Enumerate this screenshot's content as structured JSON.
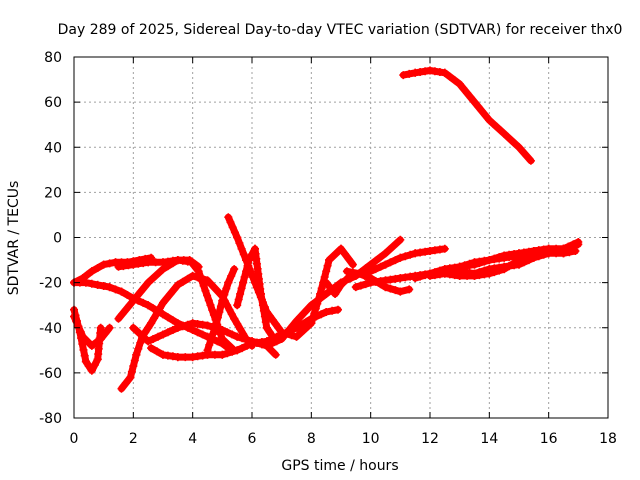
{
  "chart_data": {
    "type": "scatter",
    "title": "Day 289 of 2025, Sidereal Day-to-day VTEC variation (SDTVAR) for receiver thx0",
    "xlabel": "GPS time / hours",
    "ylabel": "SDTVAR / TECUs",
    "xlim": [
      0,
      18
    ],
    "ylim": [
      -80,
      80
    ],
    "xticks": [
      0,
      2,
      4,
      6,
      8,
      10,
      12,
      14,
      16,
      18
    ],
    "yticks": [
      -80,
      -60,
      -40,
      -20,
      0,
      20,
      40,
      60,
      80
    ],
    "grid": true,
    "marker": "+",
    "color": "#ff0000",
    "series": [
      {
        "name": "s1",
        "x": [
          11.1,
          11.5,
          12.0,
          12.5,
          13.0,
          13.5,
          14.0,
          14.5,
          15.0,
          15.4
        ],
        "y": [
          72,
          73,
          74,
          73,
          68,
          60,
          52,
          46,
          40,
          34
        ]
      },
      {
        "name": "s2",
        "x": [
          0.0,
          0.4,
          0.8,
          1.2,
          1.6,
          2.0,
          2.5,
          3.0,
          3.5,
          4.0,
          4.5,
          5.0,
          5.3
        ],
        "y": [
          -20,
          -20,
          -21,
          -22,
          -24,
          -27,
          -30,
          -34,
          -38,
          -41,
          -44,
          -47,
          -50
        ]
      },
      {
        "name": "s3",
        "x": [
          0.0,
          0.3,
          0.6,
          1.0,
          1.4,
          1.8,
          2.2,
          2.6
        ],
        "y": [
          -20,
          -18,
          -15,
          -12,
          -11,
          -11,
          -10,
          -9
        ]
      },
      {
        "name": "s4",
        "x": [
          0.0,
          0.2,
          0.4,
          0.6,
          0.8,
          0.9
        ],
        "y": [
          -32,
          -42,
          -55,
          -59,
          -54,
          -40
        ]
      },
      {
        "name": "s5",
        "x": [
          0.0,
          0.3,
          0.6,
          0.9,
          1.2
        ],
        "y": [
          -35,
          -44,
          -48,
          -45,
          -40
        ]
      },
      {
        "name": "s6",
        "x": [
          1.6,
          1.9,
          2.1,
          2.3,
          2.6,
          3.0,
          3.5,
          4.0,
          4.5,
          5.0,
          5.4,
          5.8,
          6.0
        ],
        "y": [
          -67,
          -62,
          -52,
          -44,
          -38,
          -29,
          -21,
          -17,
          -19,
          -26,
          -36,
          -45,
          -48
        ]
      },
      {
        "name": "s7",
        "x": [
          1.5,
          2.0,
          2.5,
          3.0,
          3.5,
          3.9,
          4.2,
          4.6,
          5.0,
          5.4
        ],
        "y": [
          -36,
          -28,
          -20,
          -14,
          -10,
          -10,
          -15,
          -30,
          -45,
          -50
        ]
      },
      {
        "name": "s8",
        "x": [
          2.0,
          2.5,
          3.0,
          3.5,
          4.0,
          4.5,
          5.0,
          5.5,
          6.0,
          6.5,
          6.8
        ],
        "y": [
          -40,
          -46,
          -43,
          -40,
          -38,
          -39,
          -41,
          -44,
          -46,
          -48,
          -52
        ]
      },
      {
        "name": "s9",
        "x": [
          1.5,
          2.0,
          2.5,
          3.0,
          3.5,
          4.0,
          4.2
        ],
        "y": [
          -13,
          -12,
          -11,
          -11,
          -10,
          -11,
          -13
        ]
      },
      {
        "name": "s10",
        "x": [
          2.6,
          3.0,
          3.5,
          4.0,
          4.5,
          5.0,
          5.5,
          6.0,
          6.5,
          7.0,
          7.5,
          8.0,
          8.5,
          8.9
        ],
        "y": [
          -49,
          -52,
          -53,
          -53,
          -52,
          -52,
          -50,
          -47,
          -46,
          -43,
          -40,
          -36,
          -33,
          -32
        ]
      },
      {
        "name": "s11",
        "x": [
          5.2,
          5.5,
          5.8,
          6.1,
          6.5,
          7.0,
          7.5,
          8.0,
          8.3,
          8.6,
          9.0,
          9.4
        ],
        "y": [
          9,
          0,
          -10,
          -20,
          -33,
          -42,
          -44,
          -38,
          -25,
          -10,
          -5,
          -12
        ]
      },
      {
        "name": "s12",
        "x": [
          4.5,
          4.8,
          5.0,
          5.2,
          5.4
        ],
        "y": [
          -50,
          -38,
          -28,
          -20,
          -14
        ]
      },
      {
        "name": "s13",
        "x": [
          5.5,
          5.7,
          5.9,
          6.1,
          6.3,
          6.5,
          6.8
        ],
        "y": [
          -30,
          -20,
          -10,
          -5,
          -25,
          -40,
          -46
        ]
      },
      {
        "name": "s14",
        "x": [
          6.0,
          6.5,
          7.0,
          7.5,
          8.0,
          8.5,
          9.0,
          9.5,
          10.0,
          10.5,
          11.0
        ],
        "y": [
          -46,
          -48,
          -45,
          -37,
          -30,
          -25,
          -20,
          -17,
          -12,
          -7,
          -1
        ]
      },
      {
        "name": "s15",
        "x": [
          8.5,
          8.8,
          9.0,
          9.3,
          9.6,
          10.0,
          10.5,
          11.0,
          11.3
        ],
        "y": [
          -20,
          -25,
          -21,
          -17,
          -16,
          -18,
          -22,
          -24,
          -23
        ]
      },
      {
        "name": "s16",
        "x": [
          9.2,
          9.6,
          10.0,
          10.5,
          11.0,
          11.5,
          12.0,
          12.5
        ],
        "y": [
          -15,
          -16,
          -15,
          -12,
          -9,
          -7,
          -6,
          -5
        ]
      },
      {
        "name": "s17",
        "x": [
          9.5,
          10.0,
          10.5,
          11.0,
          11.5,
          12.0,
          12.5,
          13.0,
          13.5,
          14.0,
          14.5,
          15.0,
          15.5,
          16.0,
          16.5,
          17.0
        ],
        "y": [
          -22,
          -20,
          -19,
          -18,
          -17,
          -16,
          -15,
          -13,
          -12,
          -10,
          -8,
          -7,
          -6,
          -5,
          -5,
          -3
        ]
      },
      {
        "name": "s18",
        "x": [
          11.5,
          12.0,
          12.5,
          13.0,
          13.5,
          14.0,
          14.5,
          15.0,
          15.5,
          16.0,
          16.5,
          16.9
        ],
        "y": [
          -18,
          -16,
          -14,
          -13,
          -11,
          -10,
          -9,
          -8,
          -7,
          -7,
          -7,
          -6
        ]
      },
      {
        "name": "s19",
        "x": [
          12.0,
          12.5,
          13.0,
          13.5,
          14.0,
          14.5,
          15.0,
          15.5,
          16.0,
          16.5,
          17.0
        ],
        "y": [
          -17,
          -16,
          -15,
          -16,
          -14,
          -13,
          -12,
          -9,
          -7,
          -5,
          -2
        ]
      },
      {
        "name": "s20",
        "x": [
          12.5,
          13.0,
          13.5,
          14.0,
          14.5,
          15.0,
          15.5,
          16.0,
          16.5
        ],
        "y": [
          -16,
          -17,
          -17,
          -16,
          -14,
          -10,
          -6,
          -5,
          -7
        ]
      }
    ]
  }
}
